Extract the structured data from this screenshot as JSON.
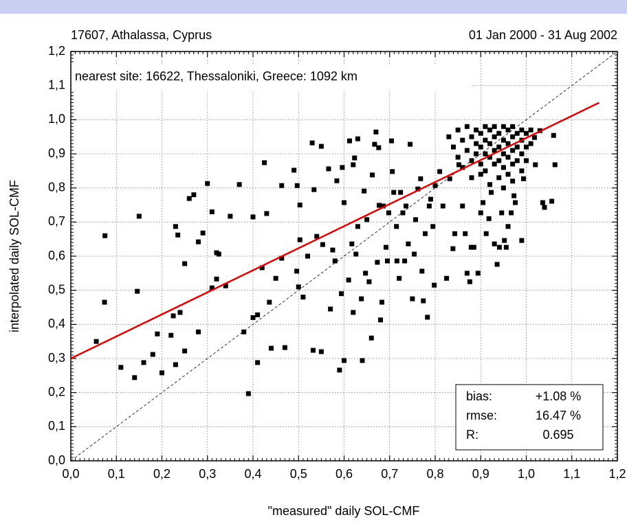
{
  "chart_data": {
    "type": "scatter",
    "title_left": "17607, Athalassa, Cyprus",
    "title_right": "01 Jan 2000 - 31 Aug 2002",
    "annotation": "nearest site: 16622, Thessaloniki, Greece: 1092 km",
    "x_label": "\"measured\" daily SOL-CMF",
    "y_label": "interpolated daily SOL-CMF",
    "xlim": [
      0,
      1.2
    ],
    "ylim": [
      0,
      1.2
    ],
    "xticks": [
      {
        "value": 0,
        "label": "0,0"
      },
      {
        "value": 0.1,
        "label": "0,1"
      },
      {
        "value": 0.2,
        "label": "0,2"
      },
      {
        "value": 0.3,
        "label": "0,3"
      },
      {
        "value": 0.4,
        "label": "0,4"
      },
      {
        "value": 0.5,
        "label": "0,5"
      },
      {
        "value": 0.6,
        "label": "0,6"
      },
      {
        "value": 0.7,
        "label": "0,7"
      },
      {
        "value": 0.8,
        "label": "0,8"
      },
      {
        "value": 0.9,
        "label": "0,9"
      },
      {
        "value": 1,
        "label": "1,0"
      },
      {
        "value": 1.1,
        "label": "1,1"
      },
      {
        "value": 1.2,
        "label": "1,2"
      }
    ],
    "yticks": [
      {
        "value": 0,
        "label": "0,0"
      },
      {
        "value": 0.1,
        "label": "0,1"
      },
      {
        "value": 0.2,
        "label": "0,2"
      },
      {
        "value": 0.3,
        "label": "0,3"
      },
      {
        "value": 0.4,
        "label": "0,4"
      },
      {
        "value": 0.5,
        "label": "0,5"
      },
      {
        "value": 0.6,
        "label": "0,6"
      },
      {
        "value": 0.7,
        "label": "0,7"
      },
      {
        "value": 0.8,
        "label": "0,8"
      },
      {
        "value": 0.9,
        "label": "0,9"
      },
      {
        "value": 1,
        "label": "1,0"
      },
      {
        "value": 1.1,
        "label": "1,1"
      },
      {
        "value": 1.2,
        "label": "1,2"
      }
    ],
    "grid": true,
    "color": "#000000",
    "x": [
      0.075,
      0.074,
      0.056,
      0.11,
      0.14,
      0.15,
      0.146,
      0.16,
      0.18,
      0.19,
      0.2,
      0.22,
      0.23,
      0.235,
      0.225,
      0.24,
      0.23,
      0.25,
      0.25,
      0.26,
      0.27,
      0.28,
      0.28,
      0.29,
      0.3,
      0.31,
      0.31,
      0.32,
      0.32,
      0.325,
      0.34,
      0.35,
      0.37,
      0.38,
      0.39,
      0.4,
      0.4,
      0.41,
      0.41,
      0.42,
      0.425,
      0.43,
      0.436,
      0.44,
      0.45,
      0.463,
      0.463,
      0.47,
      0.49,
      0.496,
      0.5,
      0.497,
      0.503,
      0.503,
      0.51,
      0.52,
      0.53,
      0.534,
      0.532,
      0.54,
      0.55,
      0.55,
      0.553,
      0.566,
      0.57,
      0.575,
      0.58,
      0.584,
      0.59,
      0.594,
      0.596,
      0.6,
      0.6,
      0.61,
      0.612,
      0.617,
      0.62,
      0.623,
      0.626,
      0.62,
      0.63,
      0.63,
      0.638,
      0.64,
      0.644,
      0.647,
      0.65,
      0.655,
      0.66,
      0.662,
      0.667,
      0.67,
      0.673,
      0.676,
      0.677,
      0.68,
      0.683,
      0.686,
      0.692,
      0.695,
      0.698,
      0.704,
      0.706,
      0.709,
      0.715,
      0.716,
      0.721,
      0.724,
      0.729,
      0.733,
      0.736,
      0.741,
      0.745,
      0.75,
      0.754,
      0.757,
      0.762,
      0.768,
      0.771,
      0.774,
      0.778,
      0.783,
      0.787,
      0.79,
      0.795,
      0.798,
      0.8,
      0.81,
      0.817,
      0.825,
      0.832,
      0.839,
      0.843,
      0.852,
      0.86,
      0.866,
      0.87,
      0.876,
      0.879,
      0.885,
      0.894,
      0.9,
      0.905,
      0.912,
      0.918,
      0.923,
      0.93,
      0.936,
      0.941,
      0.946,
      0.952,
      0.956,
      0.96,
      0.967,
      0.973,
      0.976,
      0.99,
      0.994,
      1.018,
      1.02,
      1.03,
      1.036,
      1.04,
      1.056,
      1.06,
      1.063,
      0.83,
      0.84,
      0.85,
      0.85,
      0.86,
      0.86,
      0.87,
      0.87,
      0.88,
      0.88,
      0.88,
      0.89,
      0.89,
      0.89,
      0.9,
      0.9,
      0.9,
      0.9,
      0.91,
      0.91,
      0.91,
      0.91,
      0.92,
      0.92,
      0.92,
      0.92,
      0.93,
      0.93,
      0.93,
      0.93,
      0.94,
      0.94,
      0.94,
      0.94,
      0.95,
      0.95,
      0.95,
      0.95,
      0.95,
      0.96,
      0.96,
      0.96,
      0.96,
      0.97,
      0.97,
      0.97,
      0.97,
      0.97,
      0.98,
      0.98,
      0.98,
      0.99,
      0.99,
      0.99,
      0.99,
      1.0,
      1.0,
      1.0,
      1.01,
      1.01
    ],
    "y": [
      0.66,
      0.465,
      0.35,
      0.274,
      0.244,
      0.717,
      0.497,
      0.288,
      0.312,
      0.372,
      0.258,
      0.368,
      0.687,
      0.662,
      0.425,
      0.435,
      0.282,
      0.578,
      0.322,
      0.769,
      0.78,
      0.642,
      0.378,
      0.668,
      0.813,
      0.73,
      0.507,
      0.533,
      0.61,
      0.606,
      0.513,
      0.717,
      0.81,
      0.378,
      0.197,
      0.715,
      0.42,
      0.428,
      0.288,
      0.566,
      0.874,
      0.725,
      0.465,
      0.33,
      0.535,
      0.594,
      0.807,
      0.332,
      0.852,
      0.556,
      0.51,
      0.807,
      0.75,
      0.648,
      0.48,
      0.6,
      0.932,
      0.795,
      0.324,
      0.658,
      0.922,
      0.32,
      0.634,
      0.856,
      0.445,
      0.618,
      0.586,
      0.821,
      0.266,
      0.49,
      0.86,
      0.757,
      0.294,
      0.53,
      0.938,
      0.636,
      0.435,
      0.888,
      0.606,
      0.868,
      0.687,
      0.944,
      0.475,
      0.294,
      0.791,
      0.55,
      0.707,
      0.525,
      0.36,
      0.838,
      0.928,
      0.964,
      0.582,
      0.918,
      0.749,
      0.413,
      0.465,
      0.747,
      0.626,
      0.586,
      0.727,
      0.938,
      0.848,
      0.787,
      0.687,
      0.586,
      0.535,
      0.787,
      0.727,
      0.586,
      0.747,
      0.636,
      0.928,
      0.475,
      0.606,
      0.707,
      0.797,
      0.827,
      0.556,
      0.469,
      0.666,
      0.421,
      0.747,
      0.767,
      0.687,
      0.515,
      0.807,
      0.848,
      0.747,
      0.535,
      0.827,
      0.622,
      0.666,
      0.868,
      0.747,
      0.666,
      0.55,
      0.525,
      0.626,
      0.626,
      0.55,
      0.727,
      0.757,
      0.666,
      0.71,
      0.787,
      0.636,
      0.576,
      0.626,
      0.727,
      0.646,
      0.626,
      0.687,
      0.727,
      0.777,
      0.757,
      0.646,
      0.827,
      0.948,
      0.868,
      0.968,
      0.757,
      0.743,
      0.761,
      0.954,
      0.868,
      0.95,
      0.92,
      0.97,
      0.89,
      0.94,
      0.86,
      0.98,
      0.91,
      0.95,
      0.88,
      0.83,
      0.97,
      0.93,
      0.9,
      0.96,
      0.92,
      0.87,
      0.84,
      0.98,
      0.94,
      0.9,
      0.85,
      0.97,
      0.93,
      0.89,
      0.81,
      0.98,
      0.95,
      0.91,
      0.87,
      0.96,
      0.92,
      0.88,
      0.83,
      0.98,
      0.94,
      0.9,
      0.86,
      0.8,
      0.97,
      0.93,
      0.89,
      0.84,
      0.98,
      0.95,
      0.91,
      0.87,
      0.82,
      0.96,
      0.92,
      0.88,
      0.97,
      0.94,
      0.9,
      0.85,
      0.96,
      0.92,
      0.88,
      0.97,
      0.93
    ],
    "fit_line": {
      "x": [
        0,
        1.16
      ],
      "y": [
        0.3,
        1.05
      ],
      "color": "#e00000"
    },
    "stats": [
      {
        "label": "bias:",
        "value": "+1.08 %"
      },
      {
        "label": "rmse:",
        "value": "16.47 %"
      },
      {
        "label": "R:",
        "value": "0.695"
      }
    ]
  }
}
